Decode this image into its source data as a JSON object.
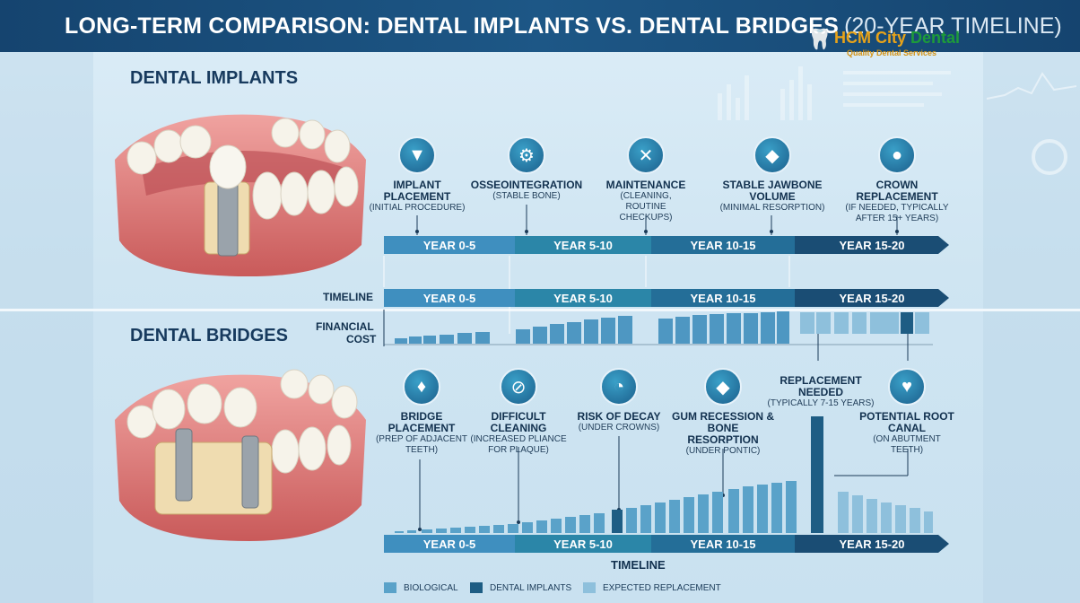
{
  "title": {
    "main": "LONG-TERM COMPARISON: DENTAL IMPLANTS VS. DENTAL BRIDGES",
    "sub": "(20-YEAR TIMELINE)"
  },
  "logo": {
    "name_part1": "HCM City ",
    "name_part2": "Dental",
    "tagline": "Quality Dental Services"
  },
  "implants": {
    "heading": "DENTAL IMPLANTS",
    "milestones": [
      {
        "label": "IMPLANT PLACEMENT",
        "sub": "(INITIAL PROCEDURE)",
        "icon": "implant-icon"
      },
      {
        "label": "OSSEOINTEGRATION",
        "sub": "(STABLE BONE)",
        "icon": "screw-icon"
      },
      {
        "label": "MAINTENANCE",
        "sub": "(CLEANING, ROUTINE CHECKUPS)",
        "icon": "tools-icon"
      },
      {
        "label": "STABLE JAWBONE VOLUME",
        "sub": "(MINIMAL RESORPTION)",
        "icon": "tooth-gum-icon"
      },
      {
        "label": "CROWN REPLACEMENT",
        "sub": "(IF NEEDED, TYPICALLY AFTER 15+ YEARS)",
        "icon": "crown-icon"
      }
    ],
    "timeline": [
      "YEAR 0-5",
      "YEAR 5-10",
      "YEAR 10-15",
      "YEAR 15-20"
    ]
  },
  "middle": {
    "timeline_label": "TIMELINE",
    "timeline": [
      "YEAR 0-5",
      "YEAR 5-10",
      "YEAR 10-15",
      "YEAR 15-20"
    ],
    "financial_label_1": "FINANCIAL",
    "financial_label_2": "COST"
  },
  "bridges": {
    "heading": "DENTAL BRIDGES",
    "milestones": [
      {
        "label": "BRIDGE PLACEMENT",
        "sub": "(PREP OF ADJACENT TEETH)",
        "icon": "tooth-icon"
      },
      {
        "label": "DIFFICULT CLEANING",
        "sub": "(INCREASED PLIANCE FOR PLAQUE)",
        "icon": "no-brush-icon"
      },
      {
        "label": "RISK OF DECAY",
        "sub": "(UNDER CROWNS)",
        "icon": "decay-icon"
      },
      {
        "label": "GUM RECESSION & BONE RESORPTION",
        "sub": "(UNDER PONTIC)",
        "icon": "gum-icon"
      },
      {
        "label": "REPLACEMENT NEEDED",
        "sub": "(TYPICALLY 7-15 YEARS)",
        "icon": ""
      },
      {
        "label": "POTENTIAL ROOT CANAL",
        "sub": "(ON ABUTMENT TEETH)",
        "icon": "root-canal-icon"
      }
    ],
    "timeline": [
      "YEAR 0-5",
      "YEAR 5-10",
      "YEAR 10-15",
      "YEAR 15-20"
    ],
    "axis_label": "TIMELINE"
  },
  "legend": [
    "BIOLOGICAL",
    "DENTAL IMPLANTS",
    "EXPECTED REPLACEMENT"
  ],
  "colors": {
    "seg1": "#3f8fbf",
    "seg2": "#2b86a8",
    "seg3": "#246e98",
    "seg4": "#1a4d74",
    "bar_light": "#5aa2c9",
    "bar_dark": "#1e5d84",
    "bar_pale": "#8dc0dc"
  }
}
